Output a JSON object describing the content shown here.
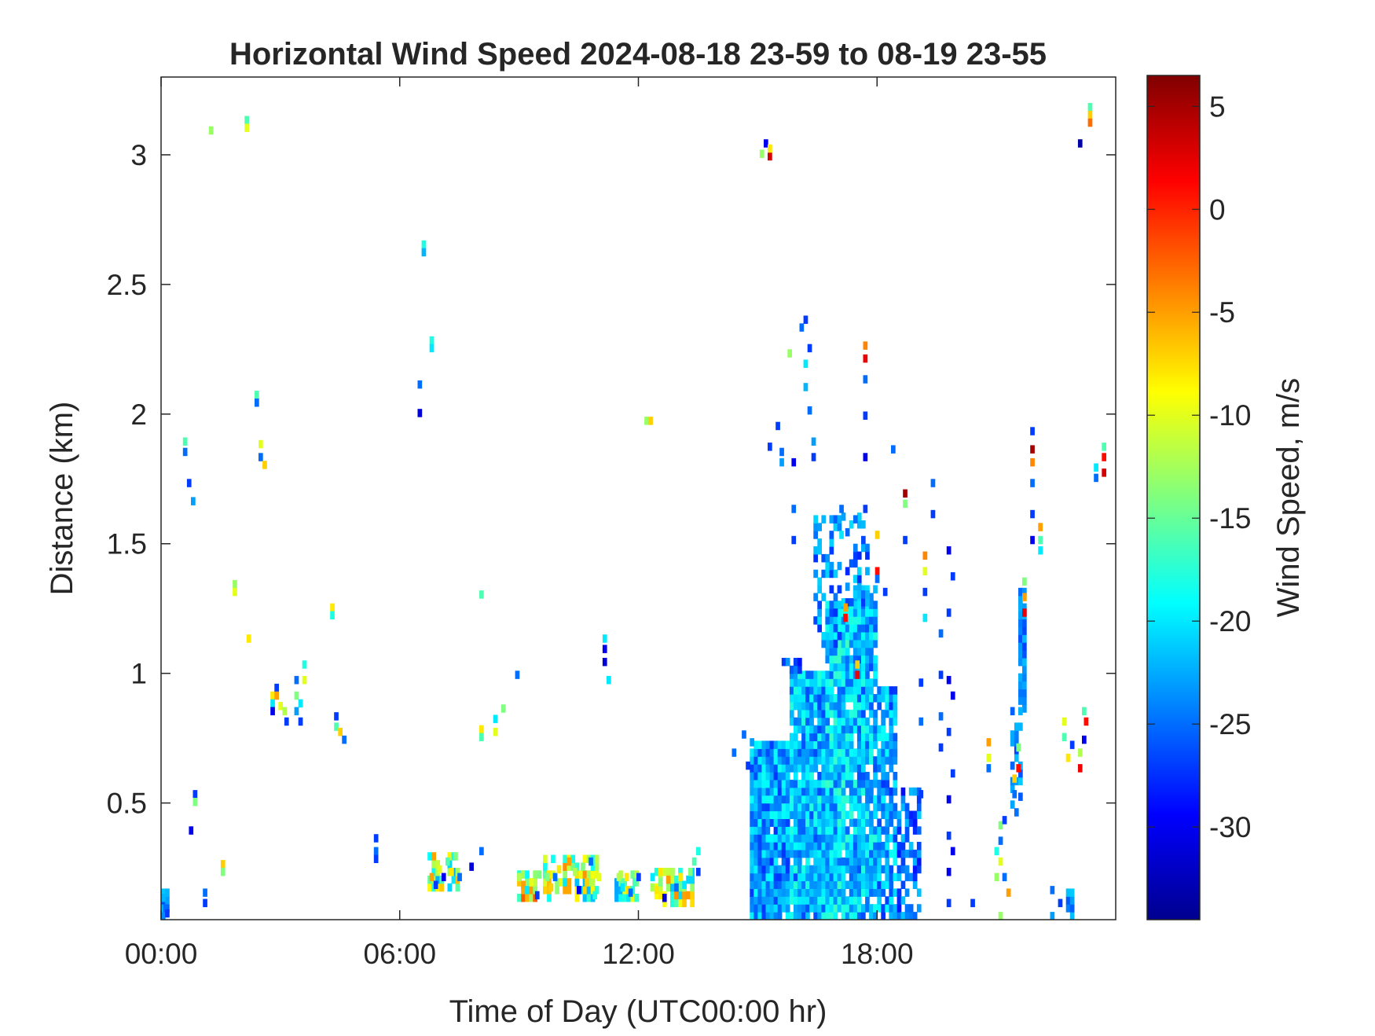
{
  "chart_data": {
    "type": "heatmap",
    "title": "Horizontal Wind Speed 2024-08-18 23-59 to 08-19 23-55",
    "xlabel": "Time of Day (UTC00:00 hr)",
    "ylabel": "Distance (km)",
    "xlim": [
      0,
      24
    ],
    "ylim": [
      0.05,
      3.3
    ],
    "x_ticks": [
      {
        "value": 0,
        "label": "00:00"
      },
      {
        "value": 6,
        "label": "06:00"
      },
      {
        "value": 12,
        "label": "12:00"
      },
      {
        "value": 18,
        "label": "18:00"
      }
    ],
    "y_ticks": [
      {
        "value": 0.5,
        "label": "0.5"
      },
      {
        "value": 1,
        "label": "1"
      },
      {
        "value": 1.5,
        "label": "1.5"
      },
      {
        "value": 2,
        "label": "2"
      },
      {
        "value": 2.5,
        "label": "2.5"
      },
      {
        "value": 3,
        "label": "3"
      }
    ],
    "colorbar": {
      "label": "Wind Speed, m/s",
      "colormap": "jet",
      "range": [
        -34.5,
        6.5
      ],
      "ticks": [
        {
          "value": 5,
          "label": "5"
        },
        {
          "value": 0,
          "label": "0"
        },
        {
          "value": -5,
          "label": "-5"
        },
        {
          "value": -10,
          "label": "-10"
        },
        {
          "value": -15,
          "label": "-15"
        },
        {
          "value": -20,
          "label": "-20"
        },
        {
          "value": -25,
          "label": "-25"
        },
        {
          "value": -30,
          "label": "-30"
        }
      ]
    },
    "grid": false,
    "cell_size": {
      "dx_hours": 0.1,
      "dy_km": 0.03
    },
    "cells": [
      [
        0.0,
        0.12,
        -22
      ],
      [
        0.05,
        0.08,
        -25
      ],
      [
        0.1,
        0.06,
        -27
      ],
      [
        1.05,
        0.1,
        -27
      ],
      [
        1.05,
        0.14,
        -25
      ],
      [
        0.55,
        1.88,
        -16
      ],
      [
        0.55,
        1.84,
        -25
      ],
      [
        0.65,
        1.72,
        -27
      ],
      [
        0.75,
        1.65,
        -23
      ],
      [
        0.7,
        0.38,
        -30
      ],
      [
        0.8,
        0.52,
        -27
      ],
      [
        0.8,
        0.49,
        -14
      ],
      [
        1.2,
        3.08,
        -13
      ],
      [
        2.1,
        3.12,
        -16
      ],
      [
        2.1,
        3.09,
        -10
      ],
      [
        1.8,
        1.33,
        -13
      ],
      [
        1.8,
        1.3,
        -10
      ],
      [
        2.15,
        1.12,
        -8
      ],
      [
        2.35,
        2.06,
        -16
      ],
      [
        2.35,
        2.03,
        -25
      ],
      [
        2.45,
        1.87,
        -10
      ],
      [
        2.45,
        1.82,
        -25
      ],
      [
        2.55,
        1.79,
        -7
      ],
      [
        1.5,
        0.25,
        -7
      ],
      [
        1.5,
        0.22,
        -14
      ],
      [
        2.75,
        0.9,
        -8
      ],
      [
        2.75,
        0.87,
        -20
      ],
      [
        2.75,
        0.84,
        -30
      ],
      [
        2.85,
        0.93,
        -27
      ],
      [
        2.85,
        0.9,
        -5
      ],
      [
        2.95,
        0.86,
        -10
      ],
      [
        3.05,
        0.84,
        -12
      ],
      [
        3.1,
        0.8,
        -27
      ],
      [
        3.35,
        0.96,
        -25
      ],
      [
        3.35,
        0.9,
        -14
      ],
      [
        3.35,
        0.84,
        -23
      ],
      [
        3.45,
        0.87,
        -20
      ],
      [
        3.45,
        0.8,
        -27
      ],
      [
        3.55,
        1.02,
        -18
      ],
      [
        3.55,
        0.96,
        -10
      ],
      [
        4.25,
        1.24,
        -8
      ],
      [
        4.25,
        1.21,
        -18
      ],
      [
        4.35,
        0.82,
        -27
      ],
      [
        4.35,
        0.78,
        -16
      ],
      [
        4.45,
        0.76,
        -7
      ],
      [
        4.55,
        0.73,
        -25
      ],
      [
        5.35,
        0.35,
        -27
      ],
      [
        5.35,
        0.3,
        -25
      ],
      [
        5.35,
        0.27,
        -27
      ],
      [
        6.45,
        2.1,
        -25
      ],
      [
        6.45,
        1.99,
        -31
      ],
      [
        6.55,
        2.64,
        -18
      ],
      [
        6.55,
        2.61,
        -22
      ],
      [
        6.75,
        2.27,
        -18
      ],
      [
        6.75,
        2.24,
        -20
      ],
      [
        6.75,
        0.2,
        -5
      ],
      [
        6.85,
        0.17,
        -27
      ],
      [
        6.95,
        0.23,
        -10
      ],
      [
        7.05,
        0.2,
        -30
      ],
      [
        7.15,
        0.26,
        -16
      ],
      [
        7.25,
        0.22,
        -8
      ],
      [
        7.35,
        0.28,
        -14
      ],
      [
        7.45,
        0.2,
        -25
      ],
      [
        8.0,
        0.3,
        -25
      ],
      [
        7.75,
        0.24,
        -31
      ],
      [
        8.0,
        1.29,
        -16
      ],
      [
        8.0,
        0.77,
        -8
      ],
      [
        8.0,
        0.74,
        -16
      ],
      [
        8.35,
        0.81,
        -20
      ],
      [
        8.35,
        0.76,
        -10
      ],
      [
        8.55,
        0.85,
        -14
      ],
      [
        8.9,
        0.98,
        -25
      ],
      [
        8.95,
        0.2,
        -12
      ],
      [
        9.05,
        0.17,
        -5
      ],
      [
        9.15,
        0.15,
        -20
      ],
      [
        9.25,
        0.18,
        -10
      ],
      [
        9.4,
        0.13,
        -27
      ],
      [
        9.65,
        0.2,
        -14
      ],
      [
        9.75,
        0.16,
        -7
      ],
      [
        9.85,
        0.2,
        -25
      ],
      [
        9.95,
        0.23,
        -8
      ],
      [
        10.1,
        0.18,
        -20
      ],
      [
        10.2,
        0.26,
        -5
      ],
      [
        10.35,
        0.22,
        -12
      ],
      [
        10.45,
        0.15,
        -30
      ],
      [
        10.55,
        0.24,
        -14
      ],
      [
        10.65,
        0.18,
        -7
      ],
      [
        10.75,
        0.26,
        -25
      ],
      [
        10.85,
        0.13,
        -18
      ],
      [
        10.95,
        0.2,
        -10
      ],
      [
        11.1,
        1.12,
        -20
      ],
      [
        11.1,
        1.08,
        -30
      ],
      [
        11.1,
        1.03,
        -31
      ],
      [
        11.2,
        0.96,
        -20
      ],
      [
        11.45,
        0.2,
        -12
      ],
      [
        11.55,
        0.16,
        -20
      ],
      [
        11.65,
        0.2,
        -8
      ],
      [
        11.75,
        0.14,
        -25
      ],
      [
        11.85,
        0.18,
        -16
      ],
      [
        11.95,
        0.2,
        -27
      ],
      [
        12.15,
        1.96,
        -13
      ],
      [
        12.25,
        1.96,
        -7
      ],
      [
        12.3,
        0.2,
        -20
      ],
      [
        12.4,
        0.15,
        -8
      ],
      [
        12.5,
        0.18,
        -14
      ],
      [
        12.6,
        0.12,
        -31
      ],
      [
        12.7,
        0.19,
        -5
      ],
      [
        12.8,
        0.22,
        -12
      ],
      [
        12.9,
        0.16,
        -25
      ],
      [
        13.0,
        0.2,
        -8
      ],
      [
        13.1,
        0.17,
        -20
      ],
      [
        13.25,
        0.22,
        -14
      ],
      [
        13.35,
        0.26,
        -16
      ],
      [
        13.45,
        0.3,
        -18
      ],
      [
        13.45,
        0.22,
        -27
      ],
      [
        14.35,
        0.68,
        -25
      ],
      [
        14.6,
        0.75,
        -25
      ],
      [
        14.7,
        0.63,
        -27
      ],
      [
        14.8,
        0.72,
        -23
      ],
      [
        15.05,
        2.99,
        -13
      ],
      [
        15.15,
        3.03,
        -30
      ],
      [
        15.25,
        2.98,
        3
      ],
      [
        15.25,
        3.01,
        -8
      ],
      [
        15.25,
        1.86,
        -27
      ],
      [
        15.45,
        1.94,
        -27
      ],
      [
        15.55,
        1.84,
        -25
      ],
      [
        15.55,
        1.8,
        -23
      ],
      [
        15.75,
        2.22,
        -13
      ],
      [
        15.85,
        1.62,
        -25
      ],
      [
        15.85,
        1.5,
        -27
      ],
      [
        15.85,
        1.8,
        -30
      ],
      [
        16.05,
        2.32,
        -25
      ],
      [
        16.15,
        2.35,
        -27
      ],
      [
        16.15,
        2.18,
        -20
      ],
      [
        16.15,
        2.09,
        -22
      ],
      [
        16.25,
        2.24,
        -27
      ],
      [
        16.25,
        2.0,
        -25
      ],
      [
        16.35,
        1.88,
        -23
      ],
      [
        16.35,
        1.82,
        -27
      ],
      [
        17.15,
        1.24,
        -5
      ],
      [
        17.15,
        1.2,
        1
      ],
      [
        17.45,
        1.02,
        -7
      ],
      [
        17.45,
        0.98,
        2
      ],
      [
        17.4,
        1.58,
        -25
      ],
      [
        17.65,
        1.62,
        -27
      ],
      [
        17.05,
        1.62,
        -25
      ],
      [
        17.05,
        1.52,
        -20
      ],
      [
        17.65,
        2.25,
        -4
      ],
      [
        17.65,
        2.2,
        2
      ],
      [
        17.65,
        2.12,
        -25
      ],
      [
        17.65,
        1.98,
        -27
      ],
      [
        17.65,
        1.82,
        -30
      ],
      [
        17.95,
        1.52,
        -7
      ],
      [
        17.95,
        1.38,
        1
      ],
      [
        17.95,
        1.35,
        -25
      ],
      [
        18.15,
        1.3,
        -27
      ],
      [
        18.35,
        1.85,
        -25
      ],
      [
        18.65,
        1.68,
        5
      ],
      [
        18.65,
        1.64,
        -14
      ],
      [
        18.65,
        1.5,
        -27
      ],
      [
        19.15,
        1.44,
        -4
      ],
      [
        19.15,
        1.38,
        -10
      ],
      [
        19.15,
        1.3,
        -27
      ],
      [
        19.15,
        1.2,
        -20
      ],
      [
        19.05,
        0.95,
        -27
      ],
      [
        19.05,
        0.8,
        -25
      ],
      [
        19.05,
        0.52,
        -27
      ],
      [
        19.35,
        1.72,
        -25
      ],
      [
        19.35,
        1.6,
        -27
      ],
      [
        19.55,
        0.98,
        -27
      ],
      [
        19.55,
        0.82,
        -25
      ],
      [
        19.55,
        0.7,
        -27
      ],
      [
        19.55,
        1.14,
        -25
      ],
      [
        19.75,
        1.46,
        -30
      ],
      [
        19.75,
        1.22,
        -27
      ],
      [
        19.75,
        0.96,
        -30
      ],
      [
        19.75,
        0.76,
        -27
      ],
      [
        19.75,
        0.5,
        -30
      ],
      [
        19.75,
        0.36,
        -27
      ],
      [
        19.75,
        0.22,
        -30
      ],
      [
        19.75,
        0.1,
        -27
      ],
      [
        19.85,
        1.36,
        -27
      ],
      [
        19.85,
        0.9,
        -30
      ],
      [
        19.85,
        0.6,
        -27
      ],
      [
        19.85,
        0.3,
        -30
      ],
      [
        20.75,
        0.72,
        -5
      ],
      [
        20.75,
        0.66,
        -10
      ],
      [
        20.75,
        0.62,
        -25
      ],
      [
        20.35,
        0.1,
        -27
      ],
      [
        20.95,
        0.3,
        -18
      ],
      [
        20.95,
        0.2,
        -13
      ],
      [
        21.05,
        0.34,
        -25
      ],
      [
        21.05,
        0.4,
        -14
      ],
      [
        21.15,
        0.42,
        -27
      ],
      [
        21.05,
        0.05,
        -13
      ],
      [
        21.15,
        0.2,
        -25
      ],
      [
        21.25,
        0.14,
        -5
      ],
      [
        21.05,
        0.26,
        -10
      ],
      [
        21.4,
        0.52,
        -25
      ],
      [
        21.4,
        0.58,
        -7
      ],
      [
        21.5,
        0.62,
        1
      ],
      [
        21.5,
        0.7,
        -14
      ],
      [
        21.65,
        1.28,
        -5
      ],
      [
        21.65,
        1.22,
        2
      ],
      [
        21.65,
        1.34,
        -14
      ],
      [
        21.85,
        1.92,
        -27
      ],
      [
        21.85,
        1.85,
        5
      ],
      [
        21.85,
        1.8,
        -4
      ],
      [
        21.85,
        1.72,
        -25
      ],
      [
        21.85,
        1.6,
        -27
      ],
      [
        21.85,
        1.5,
        -30
      ],
      [
        22.05,
        1.55,
        -5
      ],
      [
        22.05,
        1.5,
        -16
      ],
      [
        22.05,
        1.46,
        -20
      ],
      [
        22.35,
        0.15,
        -25
      ],
      [
        22.55,
        0.1,
        -27
      ],
      [
        22.35,
        0.05,
        -23
      ],
      [
        22.65,
        0.8,
        -10
      ],
      [
        22.65,
        0.74,
        -16
      ],
      [
        22.75,
        0.66,
        -8
      ],
      [
        22.85,
        0.71,
        -27
      ],
      [
        23.05,
        0.68,
        -12
      ],
      [
        23.05,
        0.62,
        2
      ],
      [
        23.15,
        0.73,
        -30
      ],
      [
        23.2,
        0.8,
        1
      ],
      [
        23.15,
        0.84,
        -16
      ],
      [
        23.3,
        3.17,
        -16
      ],
      [
        23.3,
        3.14,
        -7
      ],
      [
        23.3,
        3.11,
        -3
      ],
      [
        23.05,
        3.03,
        -33
      ],
      [
        23.45,
        1.78,
        -20
      ],
      [
        23.45,
        1.74,
        -25
      ],
      [
        23.65,
        1.86,
        -16
      ],
      [
        23.65,
        1.82,
        1
      ],
      [
        23.65,
        1.76,
        3
      ]
    ],
    "fields": [
      {
        "t0": 14.8,
        "t1": 15.8,
        "y0": 0.05,
        "y1": 0.74,
        "v": -23,
        "jit": 4.5,
        "p": 0.98
      },
      {
        "t0": 15.8,
        "t1": 16.7,
        "y0": 0.05,
        "y1": 1.0,
        "v": -22,
        "jit": 4.5,
        "p": 0.96
      },
      {
        "t0": 16.7,
        "t1": 17.4,
        "y0": 0.05,
        "y1": 1.26,
        "v": -21,
        "jit": 4.5,
        "p": 0.93
      },
      {
        "t0": 17.4,
        "t1": 18.0,
        "y0": 0.05,
        "y1": 1.34,
        "v": -22,
        "jit": 4.5,
        "p": 0.9
      },
      {
        "t0": 18.0,
        "t1": 18.5,
        "y0": 0.05,
        "y1": 0.95,
        "v": -23,
        "jit": 4.5,
        "p": 0.8
      },
      {
        "t0": 18.5,
        "t1": 19.05,
        "y0": 0.05,
        "y1": 0.55,
        "v": -25,
        "jit": 4,
        "p": 0.6
      },
      {
        "t0": 16.4,
        "t1": 17.1,
        "y0": 1.1,
        "y1": 1.6,
        "v": -24,
        "jit": 4,
        "p": 0.45
      },
      {
        "t0": 17.1,
        "t1": 17.8,
        "y0": 1.26,
        "y1": 1.62,
        "v": -24,
        "jit": 4,
        "p": 0.35
      },
      {
        "t0": 15.6,
        "t1": 16.1,
        "y0": 1.0,
        "y1": 1.06,
        "v": -26,
        "jit": 3,
        "p": 0.6
      },
      {
        "t0": 21.55,
        "t1": 21.75,
        "y0": 0.85,
        "y1": 1.32,
        "v": -24,
        "jit": 3,
        "p": 0.85
      },
      {
        "t0": 21.35,
        "t1": 21.6,
        "y0": 0.45,
        "y1": 0.85,
        "v": -24,
        "jit": 3,
        "p": 0.5
      },
      {
        "t0": 22.75,
        "t1": 22.95,
        "y0": 0.05,
        "y1": 0.2,
        "v": -24,
        "jit": 3,
        "p": 0.75
      },
      {
        "t0": 0.0,
        "t1": 0.15,
        "y0": 0.05,
        "y1": 0.16,
        "v": -24,
        "jit": 3,
        "p": 0.9
      },
      {
        "t0": 6.7,
        "t1": 7.5,
        "y0": 0.16,
        "y1": 0.3,
        "v": -14,
        "jit": 9,
        "p": 0.55
      },
      {
        "t0": 8.95,
        "t1": 9.5,
        "y0": 0.12,
        "y1": 0.24,
        "v": -11,
        "jit": 9,
        "p": 0.7
      },
      {
        "t0": 9.6,
        "t1": 11.0,
        "y0": 0.12,
        "y1": 0.3,
        "v": -13,
        "jit": 9,
        "p": 0.6
      },
      {
        "t0": 11.4,
        "t1": 12.0,
        "y0": 0.12,
        "y1": 0.22,
        "v": -14,
        "jit": 9,
        "p": 0.7
      },
      {
        "t0": 12.3,
        "t1": 13.4,
        "y0": 0.1,
        "y1": 0.24,
        "v": -13,
        "jit": 9,
        "p": 0.65
      }
    ]
  }
}
